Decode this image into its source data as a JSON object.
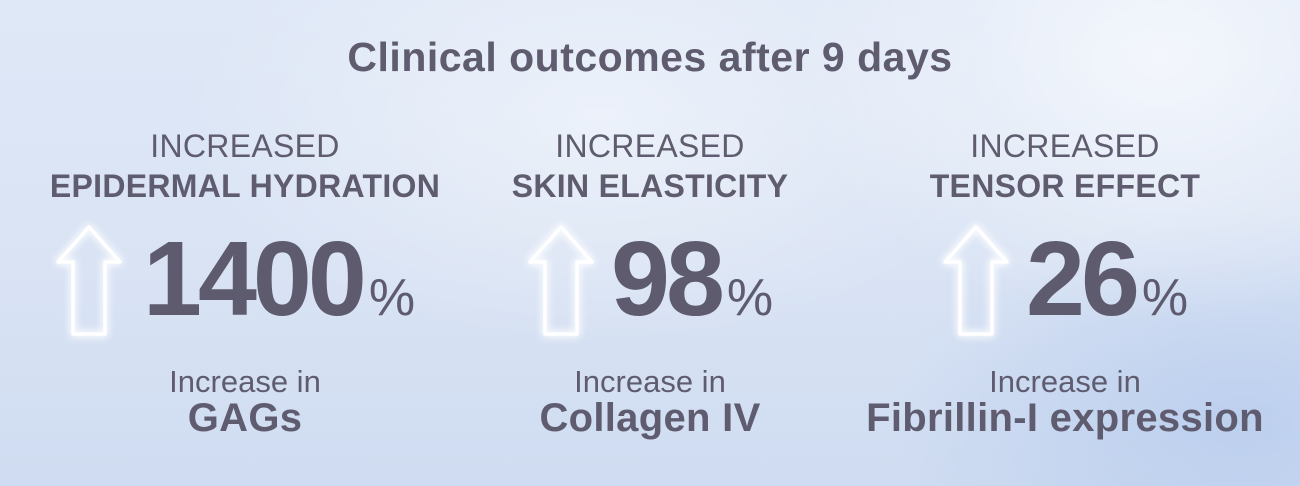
{
  "title": "Clinical outcomes after 9 days",
  "icon": "up-arrow-icon",
  "stats": [
    {
      "heading_top": "INCREASED",
      "heading_bold": "EPIDERMAL HYDRATION",
      "value": "1400",
      "unit": "%",
      "sub_top": "Increase in",
      "sub_bold": "GAGs"
    },
    {
      "heading_top": "INCREASED",
      "heading_bold": "SKIN ELASTICITY",
      "value": "98",
      "unit": "%",
      "sub_top": "Increase in",
      "sub_bold": "Collagen IV"
    },
    {
      "heading_top": "INCREASED",
      "heading_bold": "TENSOR EFFECT",
      "value": "26",
      "unit": "%",
      "sub_top": "Increase in",
      "sub_bold": "Fibrillin-I expression"
    }
  ],
  "colors": {
    "text": "#5f5c70",
    "arrow_glow": "#ffffff",
    "background": "#dbe5f5"
  }
}
